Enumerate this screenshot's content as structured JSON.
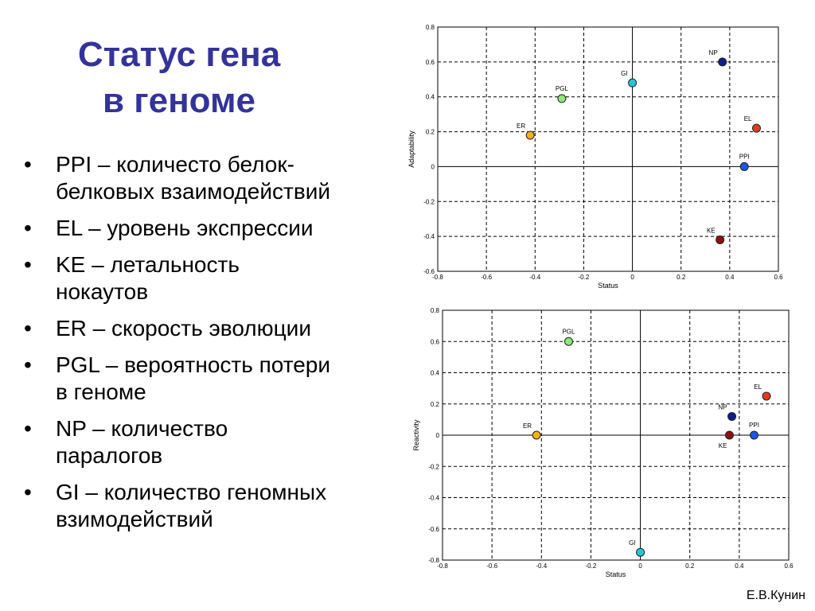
{
  "slide": {
    "title_line1": "Статус гена",
    "title_line2": "в геноме",
    "bullet_symbol": "•",
    "bullets": [
      {
        "line1": "PPI – количесто белок-",
        "line2": "белковых взаимодействий"
      },
      {
        "line1": "EL – уровень экспрессии",
        "line2": ""
      },
      {
        "line1": "KE – летальность",
        "line2": "нокаутов"
      },
      {
        "line1": "ER – скорость эволюции",
        "line2": ""
      },
      {
        "line1": "PGL – вероятность потери",
        "line2": "в геноме"
      },
      {
        "line1": "NP – количество",
        "line2": "паралогов"
      },
      {
        "line1": "GI – количество геномных",
        "line2": "взимодействий"
      }
    ],
    "author": "Е.В.Кунин",
    "title_color": "#333399"
  },
  "chart_data": [
    {
      "type": "scatter",
      "xlabel": "Status",
      "ylabel": "Adaptability",
      "xlim": [
        -0.8,
        0.6
      ],
      "ylim": [
        -0.6,
        0.8
      ],
      "xticks": [
        -0.8,
        -0.6,
        -0.4,
        -0.2,
        0,
        0.2,
        0.4,
        0.6
      ],
      "yticks": [
        -0.6,
        -0.4,
        -0.2,
        0,
        0.2,
        0.4,
        0.6,
        0.8
      ],
      "grid": true,
      "points": [
        {
          "label": "NP",
          "x": 0.37,
          "y": 0.6,
          "color": "#0d1f8c",
          "label_pos": "upper-left"
        },
        {
          "label": "GI",
          "x": 0.0,
          "y": 0.48,
          "color": "#27c4d8",
          "label_pos": "upper-left"
        },
        {
          "label": "PGL",
          "x": -0.29,
          "y": 0.39,
          "color": "#8ee878",
          "label_pos": "upper"
        },
        {
          "label": "ER",
          "x": -0.42,
          "y": 0.18,
          "color": "#f2b01e",
          "label_pos": "upper-left"
        },
        {
          "label": "EL",
          "x": 0.51,
          "y": 0.22,
          "color": "#e23b1c",
          "label_pos": "upper-left"
        },
        {
          "label": "PPI",
          "x": 0.46,
          "y": 0.0,
          "color": "#1e56e0",
          "label_pos": "upper"
        },
        {
          "label": "KE",
          "x": 0.36,
          "y": -0.42,
          "color": "#8b1010",
          "label_pos": "upper-left"
        }
      ]
    },
    {
      "type": "scatter",
      "xlabel": "Status",
      "ylabel": "Reactivity",
      "xlim": [
        -0.8,
        0.6
      ],
      "ylim": [
        -0.8,
        0.8
      ],
      "xticks": [
        -0.8,
        -0.6,
        -0.4,
        -0.2,
        0,
        0.2,
        0.4,
        0.6
      ],
      "yticks": [
        -0.8,
        -0.6,
        -0.4,
        -0.2,
        0,
        0.2,
        0.4,
        0.6,
        0.8
      ],
      "grid": true,
      "points": [
        {
          "label": "PGL",
          "x": -0.29,
          "y": 0.6,
          "color": "#8ee878",
          "label_pos": "upper"
        },
        {
          "label": "EL",
          "x": 0.51,
          "y": 0.25,
          "color": "#e23b1c",
          "label_pos": "upper-left"
        },
        {
          "label": "NP",
          "x": 0.37,
          "y": 0.12,
          "color": "#0d1f8c",
          "label_pos": "upper-left"
        },
        {
          "label": "ER",
          "x": -0.42,
          "y": 0.0,
          "color": "#f2b01e",
          "label_pos": "upper-left"
        },
        {
          "label": "KE",
          "x": 0.36,
          "y": 0.0,
          "color": "#8b1010",
          "label_pos": "lower-left"
        },
        {
          "label": "PPI",
          "x": 0.46,
          "y": 0.0,
          "color": "#1e56e0",
          "label_pos": "upper"
        },
        {
          "label": "GI",
          "x": 0.0,
          "y": -0.75,
          "color": "#27c4d8",
          "label_pos": "upper-left"
        }
      ]
    }
  ]
}
